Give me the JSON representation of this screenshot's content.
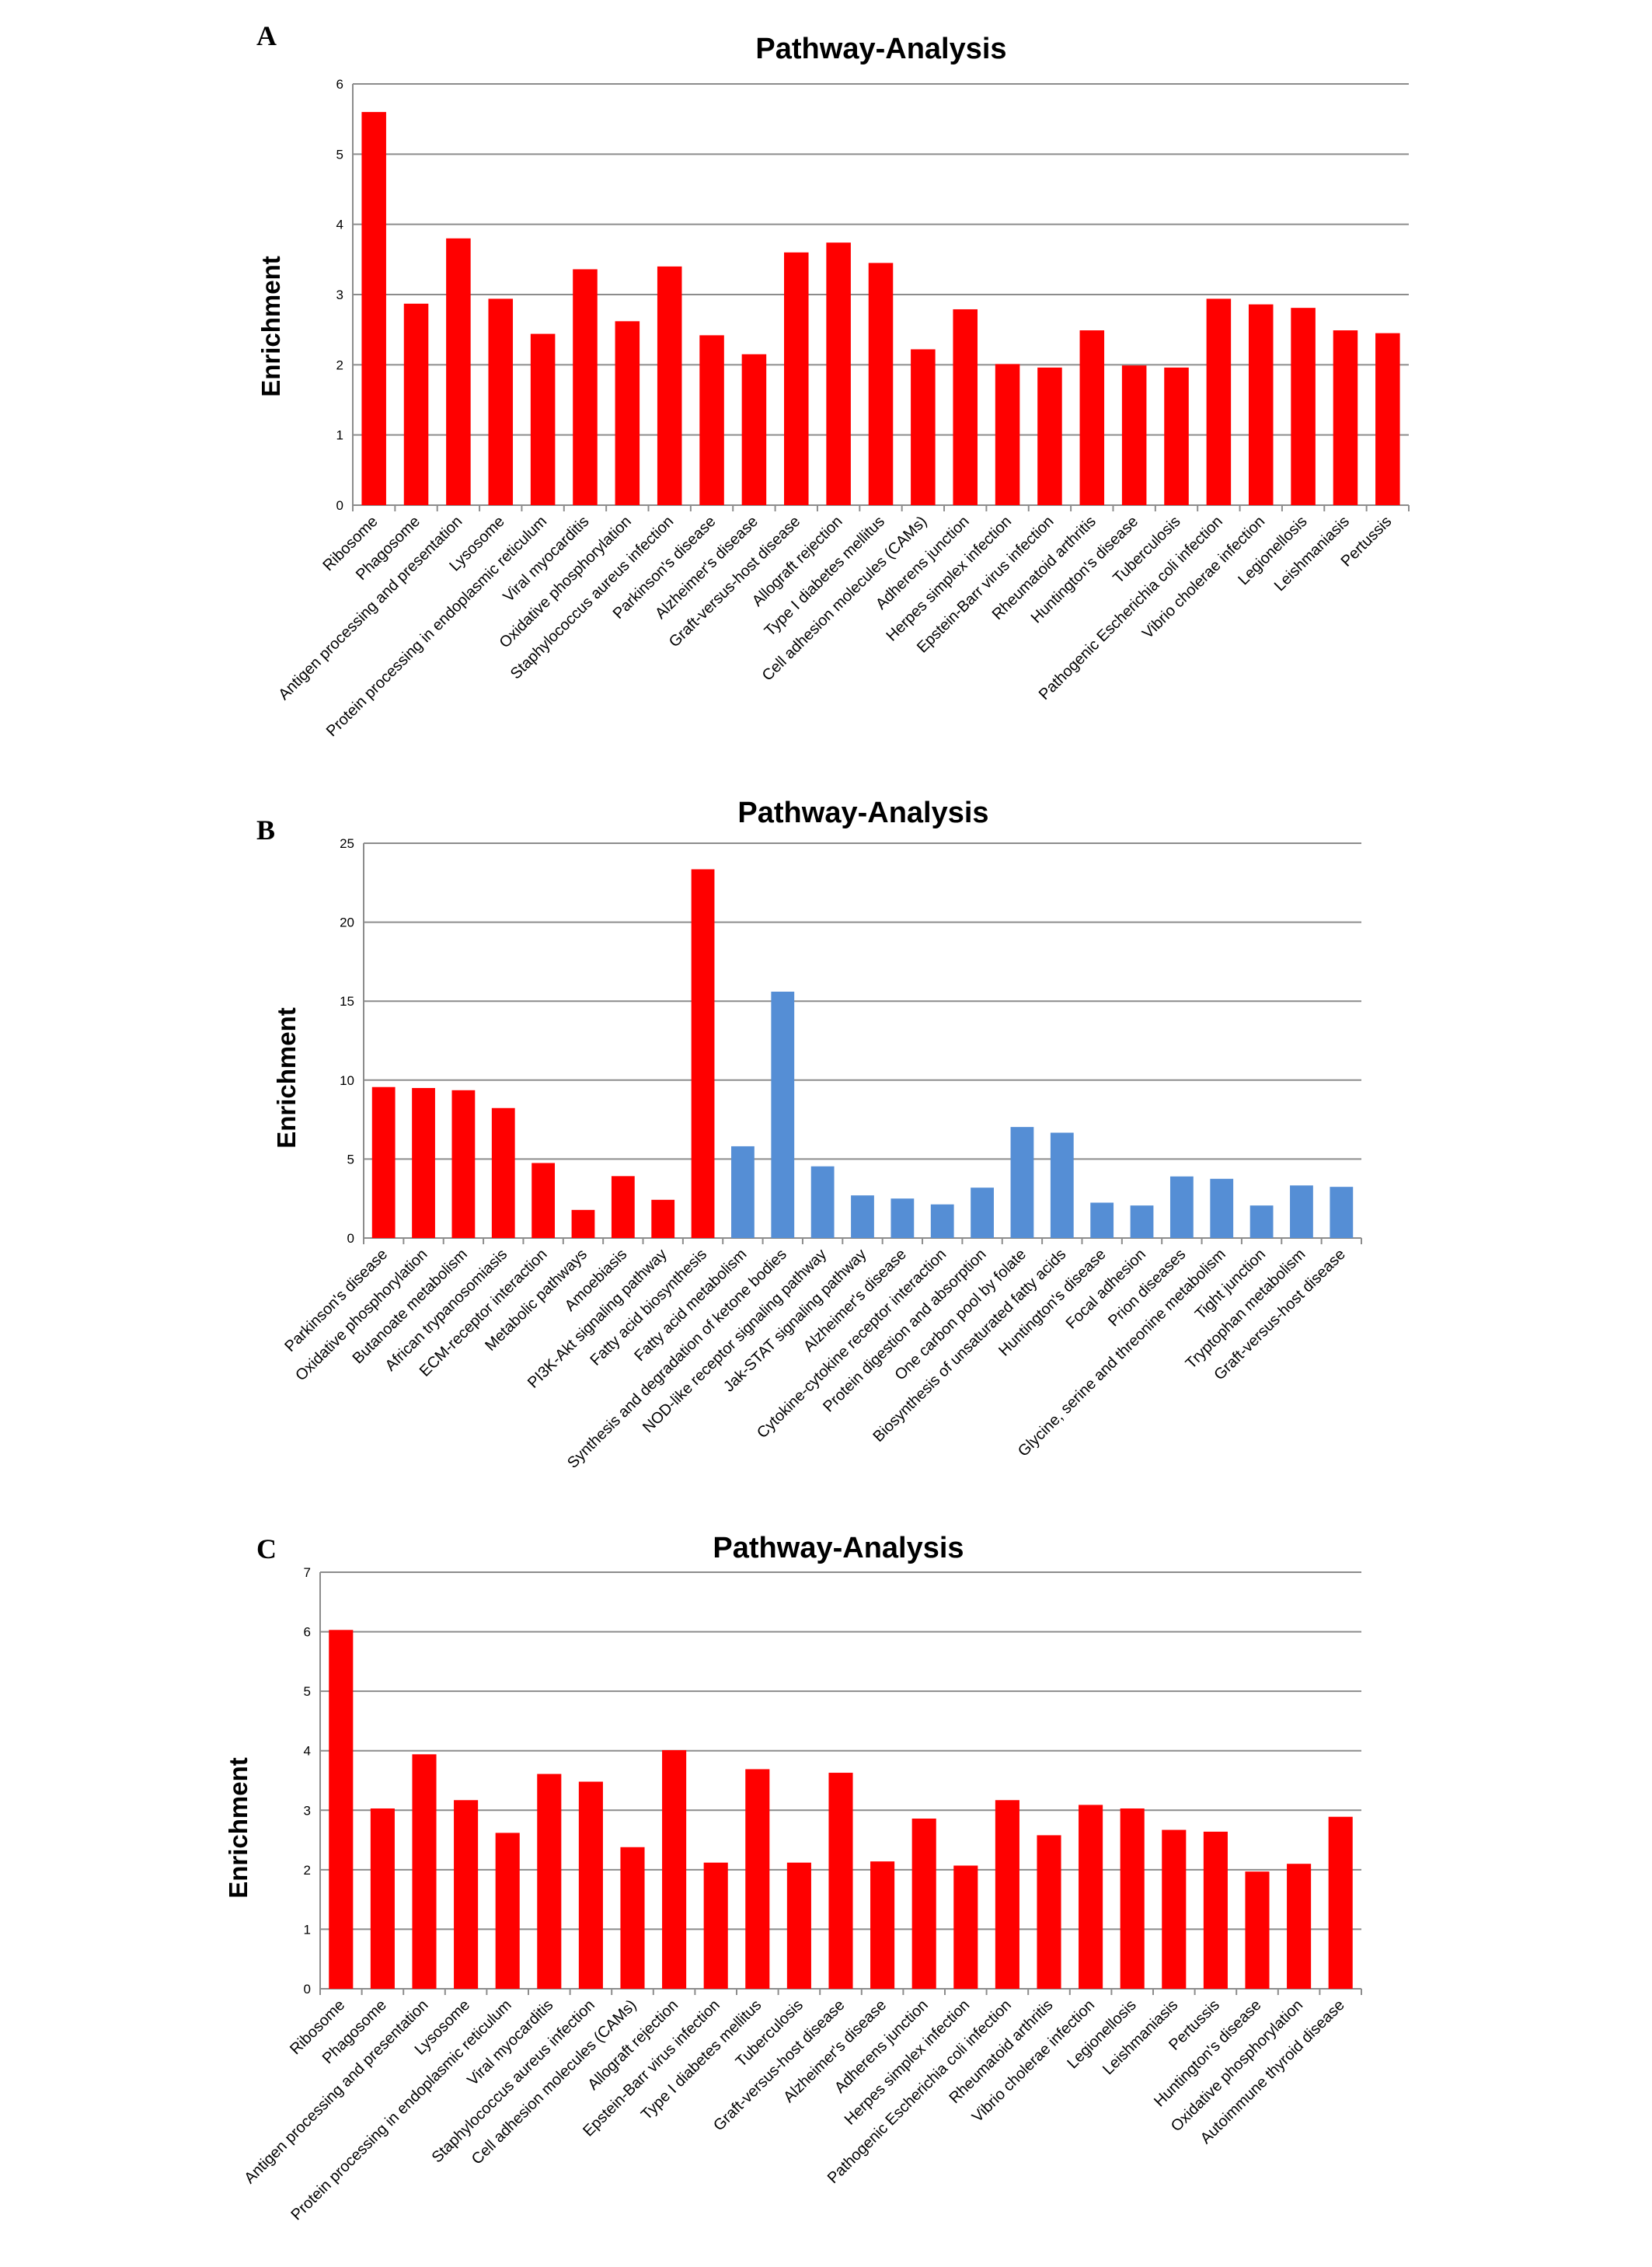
{
  "chart_data": [
    {
      "panel": "A",
      "type": "bar",
      "title": "Pathway-Analysis",
      "xlabel": "",
      "ylabel": "Enrichment",
      "ylim": [
        0,
        6
      ],
      "yticks": [
        0,
        1,
        2,
        3,
        4,
        5,
        6
      ],
      "grid": true,
      "categories": [
        "Ribosome",
        "Phagosome",
        "Antigen processing and presentation",
        "Lysosome",
        "Protein processing in endoplasmic reticulum",
        "Viral myocarditis",
        "Oxidative phosphorylation",
        "Staphylococcus aureus infection",
        "Parkinson's disease",
        "Alzheimer's disease",
        "Graft-versus-host disease",
        "Allograft rejection",
        "Type I diabetes mellitus",
        "Cell adhesion molecules (CAMs)",
        "Adherens junction",
        "Herpes simplex infection",
        "Epstein-Barr virus infection",
        "Rheumatoid arthritis",
        "Huntington's disease",
        "Tuberculosis",
        "Pathogenic Escherichia coli infection",
        "Vibrio cholerae infection",
        "Legionellosis",
        "Leishmaniasis",
        "Pertussis"
      ],
      "values": [
        5.6,
        2.87,
        3.8,
        2.94,
        2.44,
        3.36,
        2.62,
        3.4,
        2.42,
        2.15,
        3.6,
        3.74,
        3.45,
        2.22,
        2.79,
        2.01,
        1.96,
        2.49,
        1.99,
        1.96,
        2.94,
        2.86,
        2.81,
        2.49,
        2.45
      ],
      "colors": [
        "#ff0000"
      ]
    },
    {
      "panel": "B",
      "type": "bar",
      "title": "Pathway-Analysis",
      "xlabel": "",
      "ylabel": "Enrichment",
      "ylim": [
        0,
        25
      ],
      "yticks": [
        0,
        5,
        10,
        15,
        20,
        25
      ],
      "grid": true,
      "categories": [
        "Parkinson's disease",
        "Oxidative phosphorylation",
        "Butanoate metabolism",
        "African trypanosomiasis",
        "ECM-receptor interaction",
        "Metabolic pathways",
        "Amoebiasis",
        "PI3K-Akt signaling pathway",
        "Fatty acid biosynthesis",
        "Fatty acid metabolism",
        "Synthesis and degradation of ketone bodies",
        "NOD-like receptor signaling pathway",
        "Jak-STAT signaling pathway",
        "Alzheimer's disease",
        "Cytokine-cytokine receptor interaction",
        "Protein digestion and absorption",
        "One carbon pool by folate",
        "Biosynthesis of unsaturated fatty acids",
        "Huntington's disease",
        "Focal adhesion",
        "Prion diseases",
        "Glycine, serine and threonine metabolism",
        "Tight junction",
        "Tryptophan metabolism",
        "Graft-versus-host disease"
      ],
      "values": [
        9.56,
        9.5,
        9.36,
        8.23,
        4.75,
        1.78,
        3.92,
        2.42,
        23.35,
        5.81,
        15.6,
        4.54,
        2.7,
        2.5,
        2.13,
        3.19,
        7.03,
        6.67,
        2.24,
        2.06,
        3.9,
        3.75,
        2.06,
        3.33,
        3.24
      ],
      "group": [
        "red",
        "red",
        "red",
        "red",
        "red",
        "red",
        "red",
        "red",
        "red",
        "blue",
        "blue",
        "blue",
        "blue",
        "blue",
        "blue",
        "blue",
        "blue",
        "blue",
        "blue",
        "blue",
        "blue",
        "blue",
        "blue",
        "blue",
        "blue"
      ],
      "colors": {
        "red": "#ff0000",
        "blue": "#558ed5"
      }
    },
    {
      "panel": "C",
      "type": "bar",
      "title": "Pathway-Analysis",
      "xlabel": "",
      "ylabel": "Enrichment",
      "ylim": [
        0,
        7
      ],
      "yticks": [
        0,
        1,
        2,
        3,
        4,
        5,
        6,
        7
      ],
      "grid": true,
      "categories": [
        "Ribosome",
        "Phagosome",
        "Antigen processing and presentation",
        "Lysosome",
        "Protein processing in endoplasmic reticulum",
        "Viral myocarditis",
        "Staphylococcus aureus infection",
        "Cell adhesion molecules (CAMs)",
        "Allograft rejection",
        "Epstein-Barr virus infection",
        "Type I diabetes mellitus",
        "Tuberculosis",
        "Graft-versus-host disease",
        "Alzheimer's disease",
        "Adherens junction",
        "Herpes simplex infection",
        "Pathogenic Escherichia coli infection",
        "Rheumatoid arthritis",
        "Vibrio cholerae infection",
        "Legionellosis",
        "Leishmaniasis",
        "Pertussis",
        "Huntington's disease",
        "Oxidative phosphorylation",
        "Autoimmune thyroid disease"
      ],
      "values": [
        6.03,
        3.03,
        3.94,
        3.17,
        2.62,
        3.61,
        3.48,
        2.38,
        4.01,
        2.12,
        3.69,
        2.12,
        3.63,
        2.14,
        2.86,
        2.07,
        3.17,
        2.58,
        3.09,
        3.03,
        2.67,
        2.64,
        1.97,
        2.1,
        2.89
      ],
      "colors": [
        "#ff0000"
      ]
    }
  ]
}
